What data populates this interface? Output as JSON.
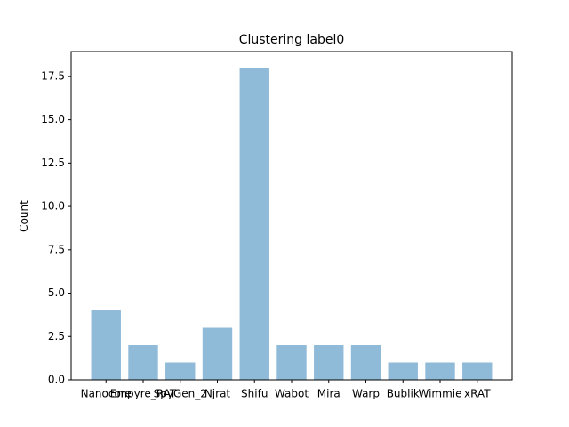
{
  "chart_data": {
    "type": "bar",
    "title": "Clustering label0",
    "ylabel": "Count",
    "categories": [
      "Nanocore",
      "Empyre_RAT",
      "SpyGen_2",
      "Njrat",
      "Shifu",
      "Wabot",
      "Mira",
      "Warp",
      "Bublik",
      "Wimmie",
      "xRAT"
    ],
    "values": [
      4,
      2,
      1,
      3,
      18,
      2,
      2,
      2,
      1,
      1,
      1
    ],
    "color": "#8fbbd9",
    "ylim": [
      0,
      18.93
    ],
    "yticks": [
      {
        "value": 0,
        "label": "0.0"
      },
      {
        "value": 2.5,
        "label": "2.5"
      },
      {
        "value": 5,
        "label": "5.0"
      },
      {
        "value": 7.5,
        "label": "7.5"
      },
      {
        "value": 10,
        "label": "10.0"
      },
      {
        "value": 12.5,
        "label": "12.5"
      },
      {
        "value": 15,
        "label": "15.0"
      },
      {
        "value": 17.5,
        "label": "17.5"
      }
    ]
  }
}
